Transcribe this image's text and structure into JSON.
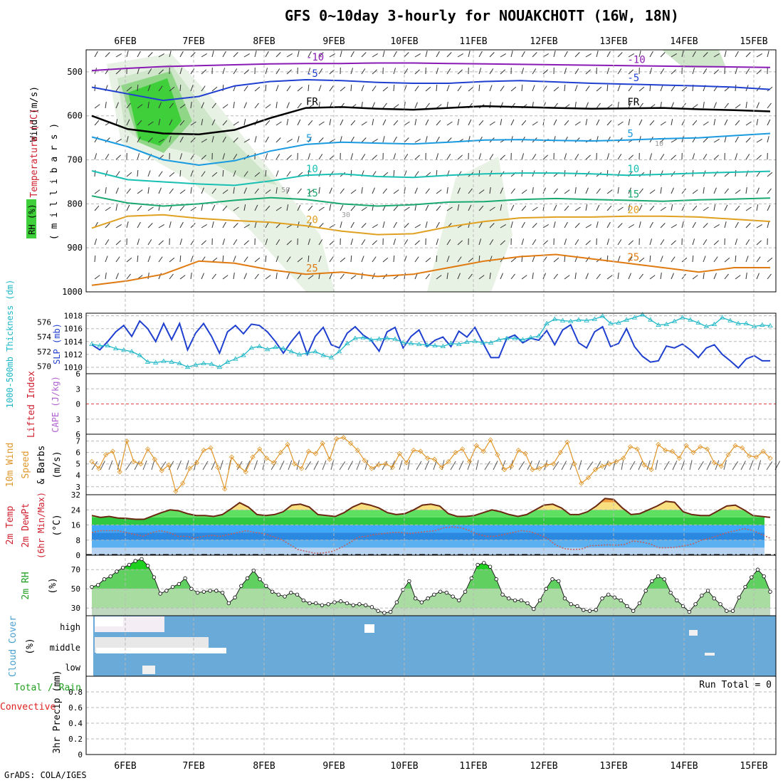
{
  "title": "GFS 0~10day 3-hourly for NOUAKCHOTT (16W, 18N)",
  "credit": "GrADS: COLA/IGES",
  "chart_data": [
    {
      "type": "line",
      "panel": "pressure-cross-section",
      "x_ticks": [
        "6FEB",
        "7FEB",
        "8FEB",
        "9FEB",
        "10FEB",
        "11FEB",
        "12FEB",
        "13FEB",
        "14FEB",
        "15FEB"
      ],
      "xlim_days": [
        0,
        9.45
      ],
      "y_ticks": [
        500,
        600,
        700,
        800,
        900,
        1000
      ],
      "ylim": [
        450,
        1000
      ],
      "y_unit": "millibars",
      "labels": {
        "ylabel_wind": "Wind (m/s)",
        "ylabel_temp": "Temperature (°C)",
        "ylabel_rh": "RH (%)",
        "ylabel_pres": "( m i l l i b a r s )"
      },
      "isotherms": [
        {
          "name": "-10",
          "color": "#8a1ab4",
          "label": "-10",
          "values": [
            497,
            492,
            488,
            486,
            484,
            482,
            481,
            481,
            480,
            480,
            481,
            482,
            483,
            484,
            485,
            486,
            487,
            488,
            489,
            490
          ]
        },
        {
          "name": "-5",
          "color": "#1f3fd0",
          "label": "-5",
          "values": [
            535,
            550,
            565,
            556,
            532,
            522,
            518,
            520,
            524,
            526,
            526,
            522,
            520,
            523,
            526,
            528,
            530,
            532,
            535,
            540
          ]
        },
        {
          "name": "FR",
          "color": "#000000",
          "label": "FR",
          "values": [
            600,
            630,
            640,
            642,
            632,
            605,
            582,
            580,
            584,
            586,
            582,
            578,
            580,
            582,
            584,
            583,
            582,
            585,
            587,
            590
          ]
        },
        {
          "name": "5",
          "color": "#1a9ae0",
          "label": "5",
          "values": [
            648,
            670,
            700,
            712,
            702,
            680,
            665,
            660,
            662,
            664,
            660,
            655,
            654,
            656,
            657,
            655,
            652,
            650,
            645,
            640
          ]
        },
        {
          "name": "10",
          "color": "#18c0b4",
          "label": "10",
          "values": [
            725,
            745,
            750,
            755,
            758,
            748,
            735,
            732,
            738,
            740,
            735,
            732,
            730,
            730,
            732,
            735,
            733,
            730,
            728,
            726
          ]
        },
        {
          "name": "15",
          "color": "#18a870",
          "label": "15",
          "values": [
            782,
            798,
            805,
            800,
            792,
            786,
            790,
            800,
            805,
            802,
            796,
            795,
            790,
            788,
            790,
            792,
            794,
            791,
            789,
            787
          ]
        },
        {
          "name": "20",
          "color": "#e0a020",
          "label": "20",
          "values": [
            855,
            828,
            825,
            833,
            838,
            842,
            850,
            862,
            870,
            868,
            852,
            840,
            832,
            830,
            830,
            828,
            828,
            830,
            835,
            840
          ]
        },
        {
          "name": "25",
          "color": "#e07a10",
          "label": "25",
          "values": [
            985,
            975,
            960,
            930,
            935,
            950,
            960,
            955,
            965,
            960,
            945,
            930,
            920,
            915,
            925,
            935,
            945,
            955,
            945,
            945
          ]
        }
      ],
      "rh_shading_levels": [
        30,
        50,
        70,
        90
      ],
      "contour_labels": [
        "30",
        "50",
        "10"
      ]
    },
    {
      "type": "line",
      "panel": "slp-thickness",
      "labels": {
        "ylabel_thick": "1000-500mb Thickness (dm)",
        "ylabel_slp": "SLP (mb)"
      },
      "left_ticks": [
        570,
        572,
        574,
        576
      ],
      "right_ticks": [
        1010,
        1012,
        1014,
        1016,
        1018
      ],
      "series": [
        {
          "name": "SLP (mb)",
          "color": "#1f3fd0",
          "axis": "right",
          "ylim": [
            1009,
            1018.4
          ],
          "values": [
            1013.5,
            1012.7,
            1014,
            1015.5,
            1016.5,
            1014.8,
            1017.2,
            1016,
            1014,
            1016.8,
            1014.3,
            1016.8,
            1012.7,
            1015.3,
            1016.8,
            1014.8,
            1012.2,
            1015.5,
            1016.5,
            1015.2,
            1016.7,
            1016.5,
            1015.5,
            1014,
            1012.2,
            1014,
            1015.5,
            1012,
            1014.8,
            1016.2,
            1013.5,
            1013,
            1015.3,
            1016.3,
            1015,
            1014.2,
            1012.5,
            1015.5,
            1016.2,
            1013,
            1014.8,
            1015.8,
            1013.2,
            1014.2,
            1014.7,
            1013.2,
            1015.6,
            1014.7,
            1016.2,
            1013.8,
            1011.5,
            1011.5,
            1014.5,
            1015,
            1013.8,
            1014.5,
            1014.2,
            1015.7,
            1013.5,
            1015.8,
            1016.6,
            1013.8,
            1013,
            1015.5,
            1016.3,
            1013.2,
            1013.7,
            1016,
            1013.2,
            1011.7,
            1010.8,
            1011,
            1013.3,
            1013,
            1013.6,
            1012.7,
            1011.5,
            1013,
            1013.5,
            1012,
            1011,
            1009.9,
            1011.3,
            1011.8,
            1011,
            1011
          ]
        },
        {
          "name": "Thickness (dm)",
          "color": "#20b8c8",
          "axis": "left",
          "ylim": [
            569,
            577.2
          ],
          "values": [
            573,
            572.8,
            572.8,
            572.4,
            572.2,
            572,
            571.5,
            570.6,
            570.5,
            570.7,
            570.6,
            570.4,
            569.9,
            570.2,
            570.4,
            570.3,
            569.9,
            570.6,
            571,
            571.5,
            572.5,
            572.7,
            572.3,
            572.6,
            572.4,
            572,
            571.6,
            571.8,
            572,
            571.5,
            571.2,
            572,
            573.1,
            573.8,
            573.9,
            573.6,
            573.7,
            573.8,
            573.7,
            573.2,
            573.1,
            573,
            572.9,
            572.8,
            572.7,
            573.1,
            573,
            573.3,
            573.4,
            573.2,
            573.2,
            573.6,
            573.8,
            573.8,
            573.6,
            573.9,
            574.1,
            575.8,
            576.4,
            576.2,
            576.1,
            576.3,
            576.2,
            576.4,
            576.8,
            575.8,
            575.9,
            576.3,
            576.6,
            577,
            576.3,
            575.6,
            575.7,
            576.1,
            576.6,
            576.3,
            575.9,
            575.4,
            575.7,
            576.6,
            576.2,
            575.8,
            575.8,
            575.4,
            575.6,
            575.5
          ]
        }
      ]
    },
    {
      "type": "line",
      "panel": "lifted-index-cape",
      "labels": {
        "ylabel_li": "Lifted Index",
        "ylabel_cape": "CAPE (J/kg)"
      },
      "y_ticks": [
        6,
        3,
        0,
        -3,
        -6
      ],
      "y_tick_labels": [
        "6",
        "3",
        "0",
        "3",
        "6"
      ],
      "zero_line_color": "#e04040"
    },
    {
      "type": "line",
      "panel": "wind-10m",
      "labels": {
        "ylabel_a": "10m Wind",
        "ylabel_b": "Speed",
        "ylabel_c": "& Barbs",
        "ylabel_d": "(m/s)"
      },
      "y_ticks": [
        3,
        4,
        5,
        6,
        7
      ],
      "ylim": [
        2.3,
        7.6
      ],
      "series": [
        {
          "name": "10m Wind Speed",
          "color": "#e0962a",
          "values": [
            5.2,
            4.6,
            5.8,
            6.1,
            4.3,
            7,
            5.2,
            5,
            6.3,
            5.4,
            4.4,
            4.9,
            2.6,
            3.3,
            4.6,
            5.1,
            6.2,
            6.4,
            4.7,
            2.8,
            5.6,
            4.8,
            4.3,
            5.6,
            6.3,
            5.5,
            5.1,
            6,
            6.7,
            5,
            4.6,
            6.1,
            5.9,
            6.8,
            5.4,
            7.2,
            7.3,
            6.8,
            6.2,
            5.3,
            4.6,
            4.9,
            5,
            4.7,
            5.9,
            5.1,
            6.2,
            6.1,
            5.5,
            5.4,
            4.7,
            5.2,
            6,
            6.3,
            5.2,
            6.6,
            6.1,
            7.1,
            5.8,
            4.5,
            4.8,
            6.2,
            5.9,
            4.5,
            4.6,
            4.9,
            5,
            6,
            6.9,
            5,
            3.3,
            3.8,
            4.5,
            4.8,
            5,
            5.2,
            5.5,
            6.5,
            6.3,
            4.9,
            4.5,
            6.7,
            6.2,
            6.1,
            5.5,
            6.6,
            6,
            6.5,
            6.3,
            5.1,
            4.8,
            5.8,
            6.6,
            6.4,
            5.7,
            5.6,
            6.1,
            5.5
          ]
        }
      ]
    },
    {
      "type": "area",
      "panel": "temp-2m",
      "labels": {
        "ylabel_a": "2m Temp",
        "ylabel_b": "2m DewPt",
        "ylabel_c": "(6hr Min/Max)",
        "ylabel_d": "(°C)"
      },
      "y_ticks": [
        0,
        8,
        16,
        24,
        32
      ],
      "ylim": [
        0,
        32
      ],
      "series": [
        {
          "name": "2m Temp",
          "color": "#6a2810",
          "values": [
            21,
            20,
            20.5,
            19.7,
            19.5,
            19,
            19,
            20.8,
            22.5,
            24,
            23.5,
            22,
            21,
            21,
            20.5,
            21.5,
            24.5,
            27.8,
            25.5,
            21.5,
            21,
            21.5,
            23,
            26.5,
            27,
            25.5,
            21.5,
            21,
            20.5,
            22.5,
            25.5,
            27.5,
            26.5,
            25,
            22.5,
            21.5,
            22,
            24,
            26.5,
            27,
            26,
            22,
            20.5,
            20.5,
            21,
            22.5,
            24,
            23,
            21.5,
            20.5,
            21.5,
            24,
            26.5,
            27,
            25,
            21.5,
            21.5,
            23,
            26,
            30,
            29.5,
            25,
            21.5,
            22,
            24,
            26,
            28.5,
            28,
            23,
            21.5,
            21,
            21,
            23.5,
            26,
            26.5,
            24,
            21,
            20.5,
            20
          ]
        },
        {
          "name": "2m DewPt",
          "color": "#c06060",
          "values": [
            12,
            13,
            13,
            13,
            12,
            11,
            10,
            12,
            13,
            12,
            10,
            10,
            9,
            10,
            10.5,
            10,
            11,
            12,
            13,
            12,
            11.5,
            10,
            8.5,
            5.8,
            3,
            2,
            1,
            1.2,
            2,
            4,
            6.5,
            9.5,
            10,
            11,
            11.5,
            12,
            12,
            11.5,
            12,
            12.5,
            13,
            14.5,
            15,
            14.5,
            13,
            11,
            10,
            10,
            11,
            12,
            13,
            12.5,
            11,
            9,
            5.5,
            3.5,
            3,
            3.2,
            5,
            5.2,
            5.5,
            5.3,
            5.6,
            7.5,
            7,
            6,
            4,
            4,
            4.2,
            5,
            6,
            8,
            9,
            10.5,
            12,
            13,
            14,
            13,
            11,
            9
          ]
        }
      ],
      "band_edges": [
        0,
        4,
        8,
        12,
        16,
        20,
        24,
        28,
        32
      ]
    },
    {
      "type": "area",
      "panel": "rh-2m",
      "labels": {
        "ylabel_a": "2m RH",
        "ylabel_b": "(%)"
      },
      "y_ticks": [
        30,
        50,
        70
      ],
      "ylim": [
        22,
        85
      ],
      "series": [
        {
          "name": "2m RH",
          "color": "#000000",
          "values": [
            52,
            54,
            60,
            63,
            68,
            72,
            75,
            79,
            81,
            74,
            62,
            45,
            48,
            52,
            55,
            61,
            50,
            46,
            47,
            48,
            48,
            46,
            35,
            41,
            53,
            61,
            69,
            60,
            53,
            47,
            44,
            42,
            46,
            44,
            38,
            35,
            35,
            33,
            34,
            36,
            37,
            35,
            33,
            34,
            33,
            31,
            27,
            25,
            26,
            36,
            49,
            58,
            40,
            36,
            40,
            44,
            47,
            46,
            42,
            38,
            47,
            61,
            75,
            77,
            73,
            60,
            44,
            40,
            38,
            38,
            35,
            29,
            38,
            50,
            60,
            58,
            40,
            34,
            32,
            28,
            27,
            28,
            40,
            44,
            41,
            38,
            32,
            27,
            35,
            48,
            58,
            63,
            60,
            46,
            38,
            32,
            26,
            34,
            43,
            48,
            40,
            34,
            27,
            27,
            41,
            52,
            62,
            70,
            63,
            47
          ]
        }
      ]
    },
    {
      "type": "heatmap",
      "panel": "cloud-cover",
      "labels": {
        "ylabel_a": "Cloud Cover",
        "ylabel_b": "(%)"
      },
      "rows": [
        "high",
        "middle",
        "low"
      ],
      "clear_color": "#6aaad8"
    },
    {
      "type": "bar",
      "panel": "precip-3hr",
      "labels": {
        "ylabel_a": "Total / Rain",
        "ylabel_b": "Convective",
        "ylabel_c": "3hr Precip (mm)"
      },
      "y_ticks": [
        0,
        0.2,
        0.4,
        0.6,
        0.8
      ],
      "ylim": [
        0,
        1.0
      ],
      "run_total_label": "Run Total = 0",
      "values": []
    }
  ]
}
